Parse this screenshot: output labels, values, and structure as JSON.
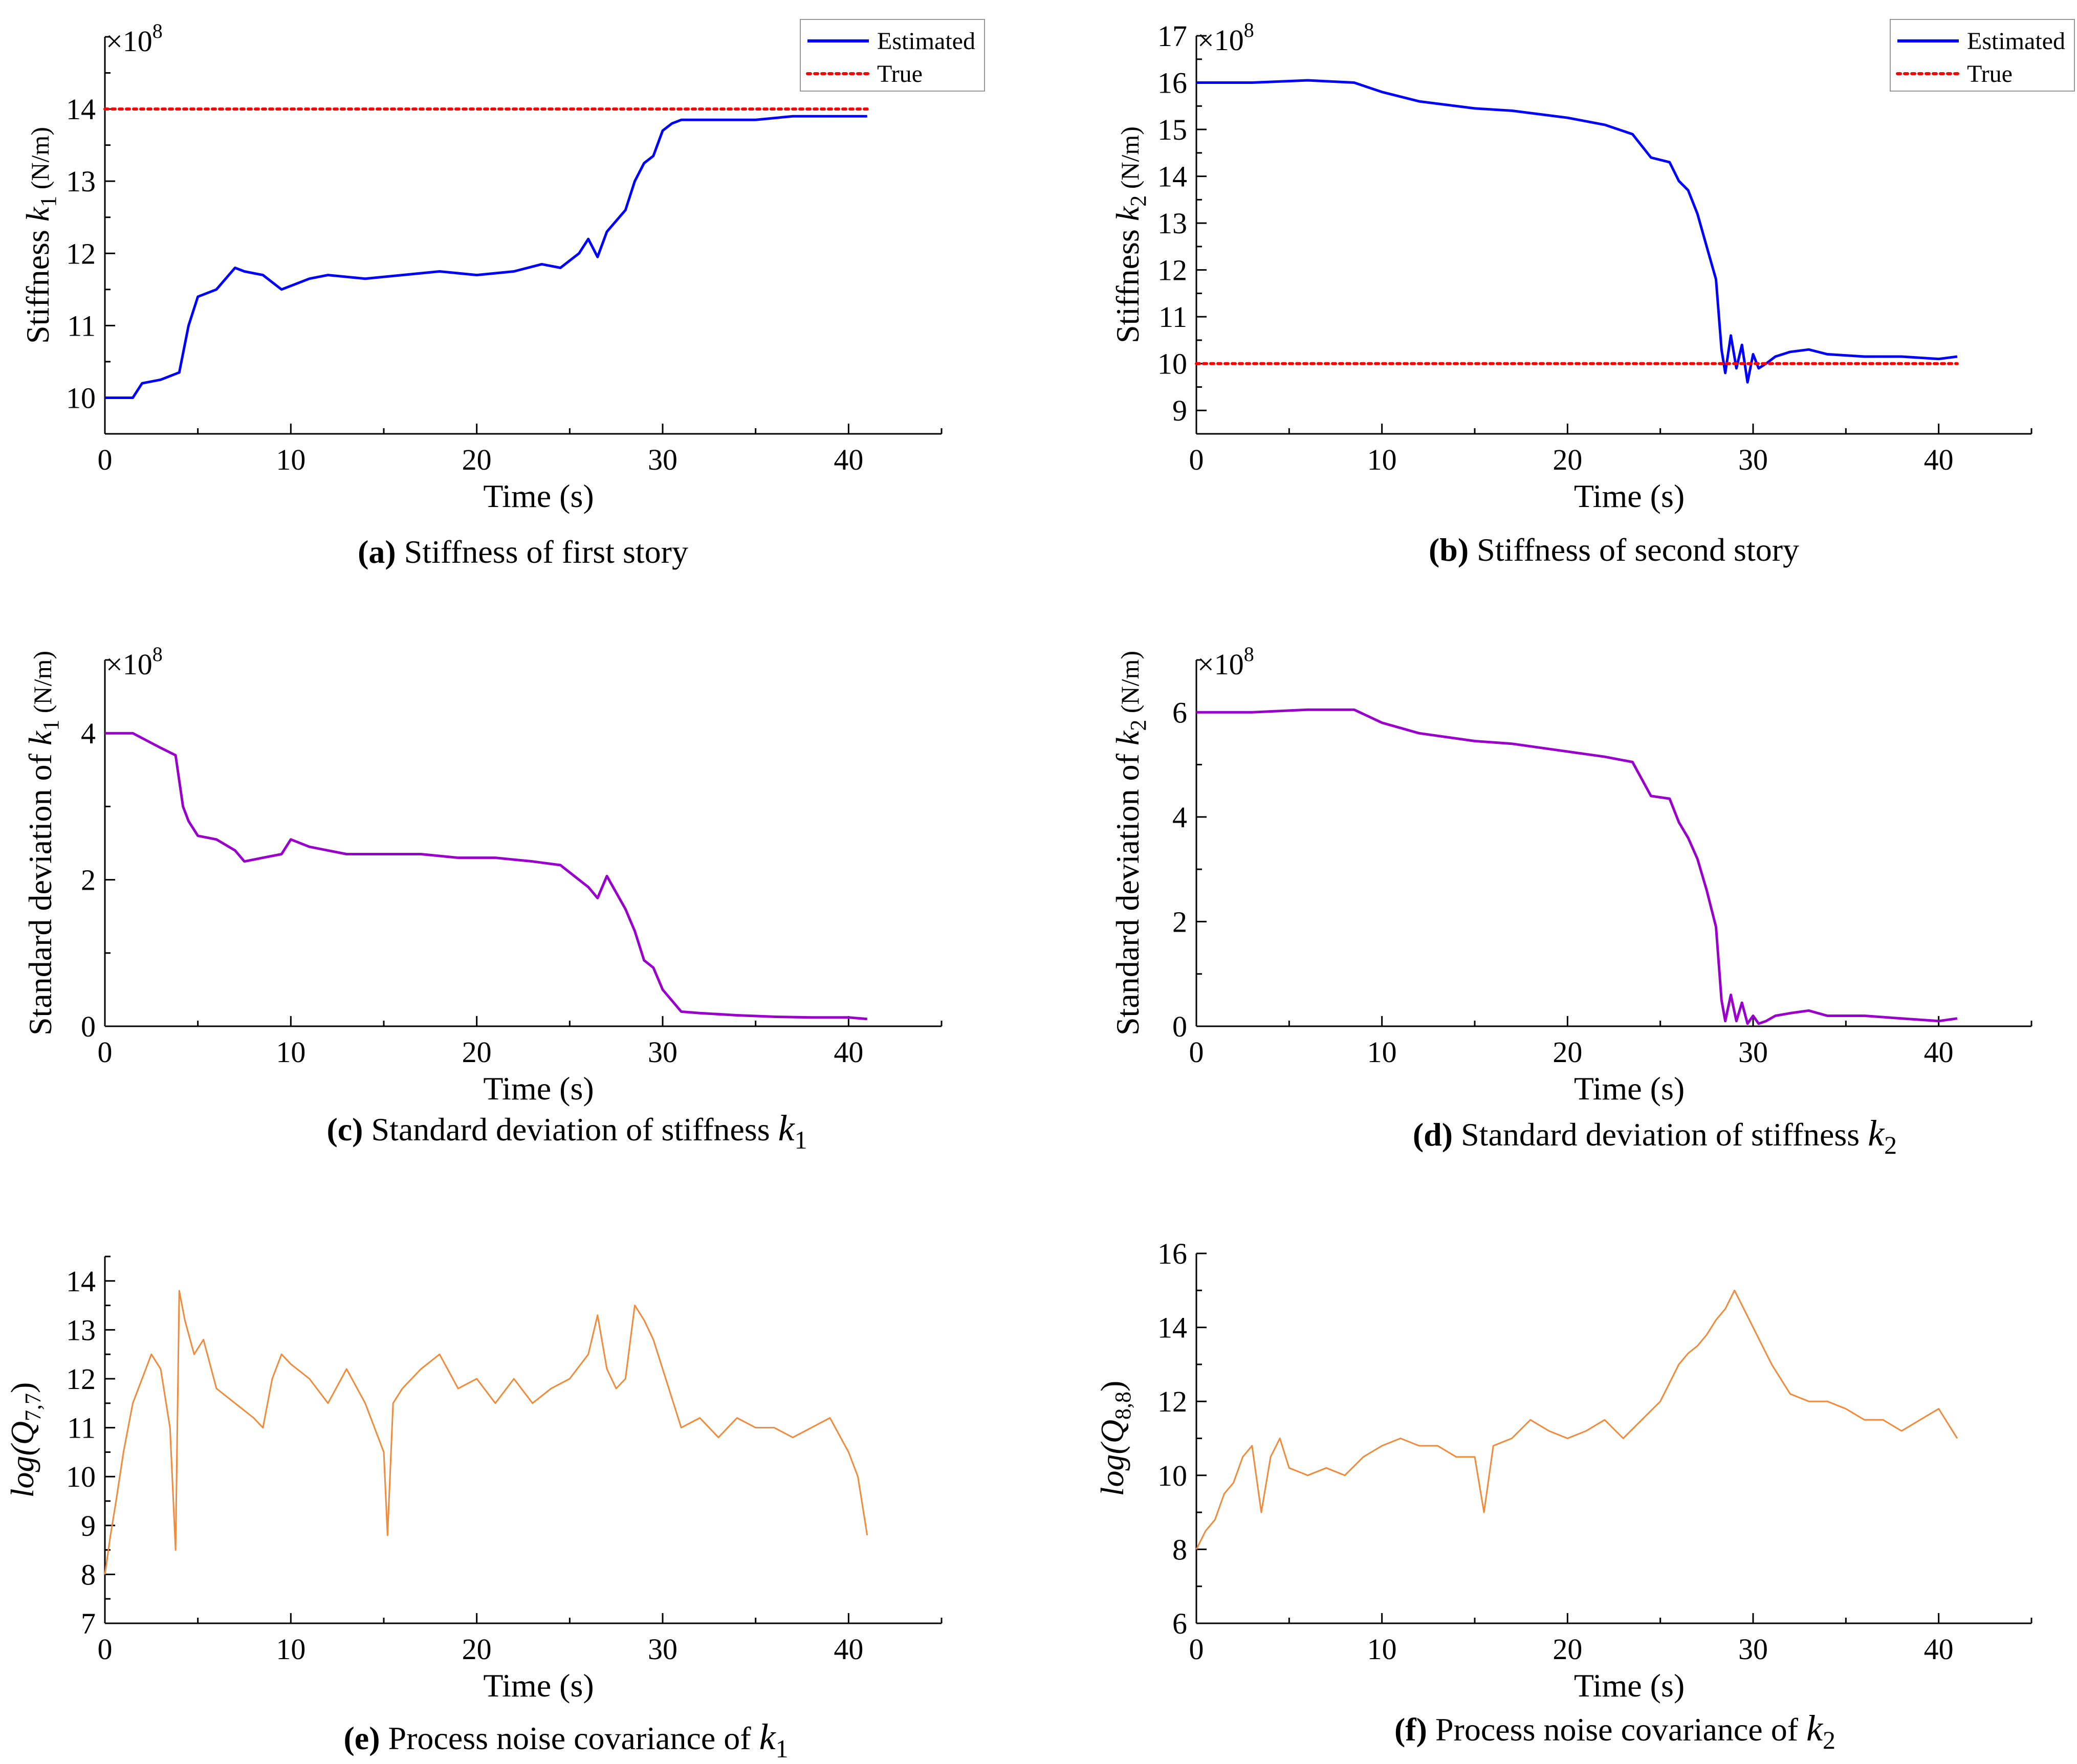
{
  "chart_data": [
    {
      "id": "a",
      "type": "line",
      "caption_label": "(a)",
      "caption_text": " Stiffness of first story",
      "ylabel": "Stiffness k1 (N/m)",
      "ylabel_parts": {
        "pre": "Stiffness ",
        "sym": "k",
        "sub": "1",
        "post": " (N/m)"
      },
      "multiplier": "×10",
      "multiplier_exp": "8",
      "xlabel": "Time (s)",
      "xlim": [
        0,
        45
      ],
      "ylim": [
        9.5,
        15
      ],
      "xticks": [
        0,
        10,
        20,
        30,
        40
      ],
      "yticks": [
        10,
        11,
        12,
        13,
        14
      ],
      "legend": {
        "position": "top-right",
        "entries": [
          "Estimated",
          "True"
        ]
      },
      "series": [
        {
          "name": "Estimated",
          "color": "#0000ff",
          "x": [
            0,
            1.5,
            2,
            3,
            4,
            4.5,
            5,
            6,
            7,
            7.5,
            8.5,
            9.5,
            10,
            11,
            12,
            14,
            16,
            18,
            20,
            22,
            23.5,
            24.5,
            25.5,
            26,
            26.5,
            27,
            28,
            28.5,
            29,
            29.5,
            30,
            30.5,
            31,
            33,
            35,
            37,
            39,
            41
          ],
          "y": [
            10.0,
            10.0,
            10.2,
            10.25,
            10.35,
            11.0,
            11.4,
            11.5,
            11.8,
            11.75,
            11.7,
            11.5,
            11.55,
            11.65,
            11.7,
            11.65,
            11.7,
            11.75,
            11.7,
            11.75,
            11.85,
            11.8,
            12.0,
            12.2,
            11.95,
            12.3,
            12.6,
            13.0,
            13.25,
            13.35,
            13.7,
            13.8,
            13.85,
            13.85,
            13.85,
            13.9,
            13.9,
            13.9
          ]
        },
        {
          "name": "True",
          "color": "#ff0000",
          "x": [
            0,
            41
          ],
          "y": [
            14.0,
            14.0
          ]
        }
      ]
    },
    {
      "id": "b",
      "type": "line",
      "caption_label": "(b)",
      "caption_text": " Stiffness of second story",
      "ylabel": "Stiffness k2 (N/m)",
      "ylabel_parts": {
        "pre": "Stiffness ",
        "sym": "k",
        "sub": "2",
        "post": " (N/m)"
      },
      "multiplier": "×10",
      "multiplier_exp": "8",
      "xlabel": "Time (s)",
      "xlim": [
        0,
        45
      ],
      "ylim": [
        8.5,
        17
      ],
      "xticks": [
        0,
        10,
        20,
        30,
        40
      ],
      "yticks": [
        9,
        10,
        11,
        12,
        13,
        14,
        15,
        16,
        17
      ],
      "legend": {
        "position": "top-right",
        "entries": [
          "Estimated",
          "True"
        ]
      },
      "series": [
        {
          "name": "Estimated",
          "color": "#0000ff",
          "x": [
            0,
            3,
            6,
            8.5,
            10,
            12,
            15,
            17,
            20,
            22,
            23.5,
            24.5,
            25.5,
            26,
            26.5,
            27,
            27.5,
            28,
            28.3,
            28.5,
            28.8,
            29.1,
            29.4,
            29.7,
            30,
            30.3,
            30.7,
            31.2,
            32,
            33,
            34,
            36,
            38,
            40,
            41
          ],
          "y": [
            16.0,
            16.0,
            16.05,
            16.0,
            15.8,
            15.6,
            15.45,
            15.4,
            15.25,
            15.1,
            14.9,
            14.4,
            14.3,
            13.9,
            13.7,
            13.2,
            12.5,
            11.8,
            10.3,
            9.8,
            10.6,
            9.9,
            10.4,
            9.6,
            10.2,
            9.9,
            10.0,
            10.15,
            10.25,
            10.3,
            10.2,
            10.15,
            10.15,
            10.1,
            10.15
          ]
        },
        {
          "name": "True",
          "color": "#ff0000",
          "x": [
            0,
            41
          ],
          "y": [
            10.0,
            10.0
          ]
        }
      ]
    },
    {
      "id": "c",
      "type": "line",
      "caption_label": "(c)",
      "caption_text": " Standard deviation of  stiffness  ",
      "caption_sym": "k",
      "caption_sub": "1",
      "ylabel": "Standard deviation of k1 (N/m)",
      "ylabel_parts": {
        "pre": "Standard deviation of  ",
        "sym": "k",
        "sub": "1",
        "post": "  (N/m)"
      },
      "multiplier": "×10",
      "multiplier_exp": "8",
      "xlabel": "Time (s)",
      "xlim": [
        0,
        45
      ],
      "ylim": [
        0,
        5
      ],
      "xticks": [
        0,
        10,
        20,
        30,
        40
      ],
      "yticks": [
        0,
        2,
        4
      ],
      "series": [
        {
          "name": "Standard deviation",
          "color": "#9900cc",
          "x": [
            0,
            1.5,
            3,
            3.8,
            4.2,
            4.5,
            5,
            6,
            7,
            7.5,
            8.5,
            9.5,
            10,
            11,
            13,
            15,
            17,
            19,
            21,
            23,
            24.5,
            25.5,
            26,
            26.5,
            27,
            28,
            28.5,
            29,
            29.5,
            30,
            30.5,
            31,
            32,
            34,
            36,
            38,
            40,
            41
          ],
          "y": [
            4.0,
            4.0,
            3.8,
            3.7,
            3.0,
            2.8,
            2.6,
            2.55,
            2.4,
            2.25,
            2.3,
            2.35,
            2.55,
            2.45,
            2.35,
            2.35,
            2.35,
            2.3,
            2.3,
            2.25,
            2.2,
            2.0,
            1.9,
            1.75,
            2.05,
            1.6,
            1.3,
            0.9,
            0.8,
            0.5,
            0.35,
            0.2,
            0.18,
            0.15,
            0.13,
            0.12,
            0.12,
            0.1
          ]
        }
      ]
    },
    {
      "id": "d",
      "type": "line",
      "caption_label": "(d)",
      "caption_text": " Standard deviation of  stiffness ",
      "caption_sym": "k",
      "caption_sub": "2",
      "ylabel": "Standard deviation of k2 (N/m)",
      "ylabel_parts": {
        "pre": "Standard deviation of  ",
        "sym": "k",
        "sub": "2",
        "post": " (N/m)"
      },
      "multiplier": "×10",
      "multiplier_exp": "8",
      "xlabel": "Time (s)",
      "xlim": [
        0,
        45
      ],
      "ylim": [
        0,
        7
      ],
      "xticks": [
        0,
        10,
        20,
        30,
        40
      ],
      "yticks": [
        0,
        2,
        4,
        6
      ],
      "series": [
        {
          "name": "Standard deviation",
          "color": "#9900cc",
          "x": [
            0,
            3,
            6,
            8.5,
            10,
            12,
            15,
            17,
            20,
            22,
            23.5,
            24.5,
            25.5,
            26,
            26.5,
            27,
            27.5,
            28,
            28.3,
            28.5,
            28.8,
            29.1,
            29.4,
            29.7,
            30,
            30.3,
            30.7,
            31.2,
            32,
            33,
            34,
            36,
            38,
            40,
            41
          ],
          "y": [
            6.0,
            6.0,
            6.05,
            6.05,
            5.8,
            5.6,
            5.45,
            5.4,
            5.25,
            5.15,
            5.05,
            4.4,
            4.35,
            3.9,
            3.6,
            3.2,
            2.6,
            1.9,
            0.5,
            0.1,
            0.6,
            0.1,
            0.45,
            0.05,
            0.2,
            0.05,
            0.1,
            0.2,
            0.25,
            0.3,
            0.2,
            0.2,
            0.15,
            0.1,
            0.15
          ]
        }
      ]
    },
    {
      "id": "e",
      "type": "line",
      "caption_label": "(e)",
      "caption_text": " Process noise covariance of  ",
      "caption_sym": "k",
      "caption_sub": "1",
      "ylabel": "log(Q7,7)",
      "ylabel_parts": {
        "pre": "log(",
        "sym": "Q",
        "sub": "7,7",
        "post": ")"
      },
      "xlabel": "Time (s)",
      "xlim": [
        0,
        45
      ],
      "ylim": [
        7,
        14.5
      ],
      "xticks": [
        0,
        10,
        20,
        30,
        40
      ],
      "yticks": [
        7,
        8,
        9,
        10,
        11,
        12,
        13,
        14
      ],
      "series": [
        {
          "name": "log(Q7,7)",
          "color": "#f08a3c",
          "x": [
            0,
            0.3,
            0.6,
            1,
            1.5,
            2,
            2.5,
            3,
            3.5,
            3.8,
            4,
            4.3,
            4.8,
            5.3,
            6,
            7,
            8,
            8.5,
            9,
            9.5,
            10,
            11,
            12,
            13,
            14,
            15,
            15.2,
            15.5,
            16,
            17,
            18,
            19,
            20,
            21,
            22,
            23,
            24,
            25,
            26,
            26.5,
            27,
            27.5,
            28,
            28.5,
            29,
            29.5,
            30,
            31,
            32,
            33,
            34,
            35,
            36,
            37,
            38,
            39,
            40,
            40.5,
            41
          ],
          "y": [
            8.0,
            8.8,
            9.5,
            10.5,
            11.5,
            12.0,
            12.5,
            12.2,
            11.0,
            8.5,
            13.8,
            13.2,
            12.5,
            12.8,
            11.8,
            11.5,
            11.2,
            11.0,
            12.0,
            12.5,
            12.3,
            12.0,
            11.5,
            12.2,
            11.5,
            10.5,
            8.8,
            11.5,
            11.8,
            12.2,
            12.5,
            11.8,
            12.0,
            11.5,
            12.0,
            11.5,
            11.8,
            12.0,
            12.5,
            13.3,
            12.2,
            11.8,
            12.0,
            13.5,
            13.2,
            12.8,
            12.2,
            11.0,
            11.2,
            10.8,
            11.2,
            11.0,
            11.0,
            10.8,
            11.0,
            11.2,
            10.5,
            10.0,
            8.8
          ]
        }
      ]
    },
    {
      "id": "f",
      "type": "line",
      "caption_label": "(f)",
      "caption_text": " Process noise covariance of  ",
      "caption_sym": "k",
      "caption_sub": "2",
      "ylabel": "log(Q8,8)",
      "ylabel_parts": {
        "pre": "log(",
        "sym": "Q",
        "sub": "8,8",
        "post": ")"
      },
      "xlabel": "Time (s)",
      "xlim": [
        0,
        45
      ],
      "ylim": [
        6,
        16
      ],
      "xticks": [
        0,
        10,
        20,
        30,
        40
      ],
      "yticks": [
        6,
        8,
        10,
        12,
        14,
        16
      ],
      "series": [
        {
          "name": "log(Q8,8)",
          "color": "#f08a3c",
          "x": [
            0,
            0.5,
            1,
            1.5,
            2,
            2.5,
            3,
            3.5,
            4,
            4.5,
            5,
            6,
            7,
            8,
            9,
            10,
            11,
            12,
            13,
            14,
            15,
            15.5,
            16,
            17,
            18,
            19,
            20,
            21,
            22,
            23,
            24,
            25,
            26,
            26.5,
            27,
            27.5,
            28,
            28.5,
            29,
            29.5,
            30,
            31,
            32,
            33,
            34,
            35,
            36,
            37,
            38,
            39,
            40,
            41
          ],
          "y": [
            8.0,
            8.5,
            8.8,
            9.5,
            9.8,
            10.5,
            10.8,
            9.0,
            10.5,
            11.0,
            10.2,
            10.0,
            10.2,
            10.0,
            10.5,
            10.8,
            11.0,
            10.8,
            10.8,
            10.5,
            10.5,
            9.0,
            10.8,
            11.0,
            11.5,
            11.2,
            11.0,
            11.2,
            11.5,
            11.0,
            11.5,
            12.0,
            13.0,
            13.3,
            13.5,
            13.8,
            14.2,
            14.5,
            15.0,
            14.5,
            14.0,
            13.0,
            12.2,
            12.0,
            12.0,
            11.8,
            11.5,
            11.5,
            11.2,
            11.5,
            11.8,
            11.0
          ]
        }
      ]
    }
  ]
}
